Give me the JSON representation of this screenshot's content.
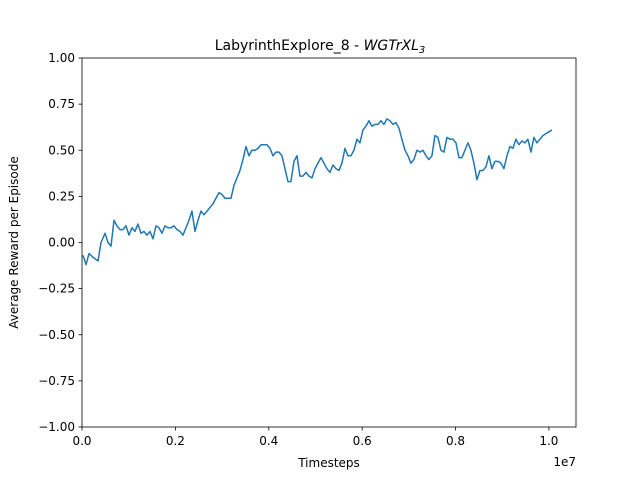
{
  "chart_data": {
    "type": "line",
    "title": "LabyrinthExplore_8 - ",
    "title_italic": "WGTrXL",
    "title_subscript": "3",
    "x_label": "Timesteps",
    "y_label": "Average Reward per Episode",
    "x_offset_label": "1e7",
    "xlim": [
      0,
      10580000
    ],
    "ylim": [
      -1,
      1
    ],
    "xticks": [
      {
        "value": 0,
        "label": "0.0"
      },
      {
        "value": 2000000,
        "label": "0.2"
      },
      {
        "value": 4000000,
        "label": "0.4"
      },
      {
        "value": 6000000,
        "label": "0.6"
      },
      {
        "value": 8000000,
        "label": "0.8"
      },
      {
        "value": 10000000,
        "label": "1.0"
      }
    ],
    "yticks": [
      {
        "value": -1,
        "label": "−1.00"
      },
      {
        "value": -0.75,
        "label": "−0.75"
      },
      {
        "value": -0.5,
        "label": "−0.50"
      },
      {
        "value": -0.25,
        "label": "−0.25"
      },
      {
        "value": 0,
        "label": "0.00"
      },
      {
        "value": 0.25,
        "label": "0.25"
      },
      {
        "value": 0.5,
        "label": "0.50"
      },
      {
        "value": 0.75,
        "label": "0.75"
      },
      {
        "value": 1,
        "label": "1.00"
      }
    ],
    "x": [
      21000,
      86000,
      150000,
      236000,
      343000,
      407000,
      493000,
      557000,
      621000,
      685000,
      749000,
      814000,
      878000,
      942000,
      1006000,
      1071000,
      1135000,
      1199000,
      1263000,
      1328000,
      1392000,
      1456000,
      1520000,
      1585000,
      1649000,
      1713000,
      1777000,
      1842000,
      1906000,
      1970000,
      2034000,
      2099000,
      2163000,
      2227000,
      2291000,
      2355000,
      2420000,
      2484000,
      2548000,
      2612000,
      2677000,
      2741000,
      2805000,
      2869000,
      2934000,
      2998000,
      3062000,
      3126000,
      3191000,
      3255000,
      3319000,
      3383000,
      3448000,
      3512000,
      3576000,
      3640000,
      3705000,
      3769000,
      3833000,
      3897000,
      3961000,
      4026000,
      4090000,
      4154000,
      4218000,
      4283000,
      4347000,
      4411000,
      4475000,
      4540000,
      4604000,
      4668000,
      4732000,
      4797000,
      4861000,
      4925000,
      4989000,
      5054000,
      5118000,
      5182000,
      5246000,
      5311000,
      5375000,
      5439000,
      5503000,
      5567000,
      5632000,
      5696000,
      5760000,
      5824000,
      5889000,
      5953000,
      6017000,
      6081000,
      6146000,
      6210000,
      6274000,
      6338000,
      6403000,
      6467000,
      6531000,
      6595000,
      6660000,
      6724000,
      6788000,
      6852000,
      6917000,
      6981000,
      7045000,
      7109000,
      7173000,
      7238000,
      7302000,
      7366000,
      7430000,
      7495000,
      7559000,
      7623000,
      7687000,
      7752000,
      7816000,
      7880000,
      7944000,
      8009000,
      8073000,
      8137000,
      8201000,
      8266000,
      8330000,
      8394000,
      8458000,
      8523000,
      8587000,
      8651000,
      8715000,
      8779000,
      8844000,
      8908000,
      8972000,
      9036000,
      9101000,
      9165000,
      9229000,
      9293000,
      9358000,
      9422000,
      9486000,
      9550000,
      9615000,
      9679000,
      9743000,
      9807000,
      9872000,
      9936000,
      10000000,
      10064000
    ],
    "series": [
      {
        "color": "#1f77b4",
        "values": [
          -0.07,
          -0.12,
          -0.06,
          -0.08,
          -0.1,
          0.0,
          0.05,
          0.0,
          -0.02,
          0.12,
          0.09,
          0.07,
          0.07,
          0.09,
          0.04,
          0.08,
          0.06,
          0.1,
          0.05,
          0.06,
          0.04,
          0.06,
          0.02,
          0.09,
          0.08,
          0.05,
          0.09,
          0.08,
          0.08,
          0.09,
          0.07,
          0.06,
          0.04,
          0.08,
          0.12,
          0.17,
          0.06,
          0.12,
          0.17,
          0.15,
          0.17,
          0.19,
          0.21,
          0.24,
          0.27,
          0.26,
          0.24,
          0.24,
          0.24,
          0.31,
          0.35,
          0.39,
          0.45,
          0.52,
          0.47,
          0.5,
          0.5,
          0.51,
          0.53,
          0.53,
          0.53,
          0.51,
          0.47,
          0.49,
          0.49,
          0.47,
          0.4,
          0.33,
          0.33,
          0.44,
          0.47,
          0.36,
          0.36,
          0.38,
          0.36,
          0.35,
          0.4,
          0.43,
          0.46,
          0.43,
          0.4,
          0.38,
          0.42,
          0.4,
          0.39,
          0.43,
          0.51,
          0.47,
          0.47,
          0.5,
          0.56,
          0.54,
          0.61,
          0.63,
          0.66,
          0.63,
          0.64,
          0.64,
          0.66,
          0.64,
          0.67,
          0.66,
          0.64,
          0.65,
          0.62,
          0.56,
          0.5,
          0.47,
          0.43,
          0.45,
          0.5,
          0.49,
          0.5,
          0.47,
          0.45,
          0.47,
          0.58,
          0.57,
          0.5,
          0.49,
          0.57,
          0.56,
          0.56,
          0.54,
          0.46,
          0.46,
          0.5,
          0.54,
          0.5,
          0.43,
          0.34,
          0.39,
          0.39,
          0.41,
          0.47,
          0.4,
          0.44,
          0.44,
          0.43,
          0.4,
          0.47,
          0.52,
          0.51,
          0.56,
          0.53,
          0.55,
          0.54,
          0.56,
          0.49,
          0.57,
          0.54,
          0.56,
          0.58,
          0.59,
          0.6,
          0.61
        ]
      }
    ]
  }
}
